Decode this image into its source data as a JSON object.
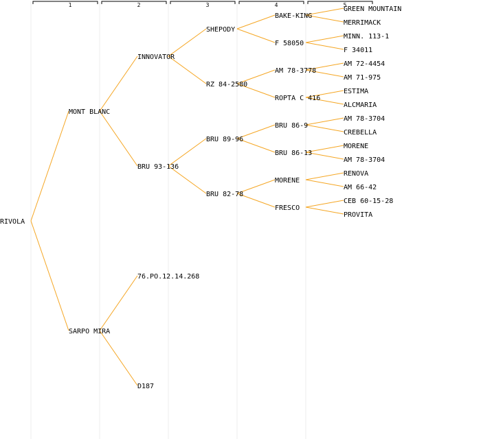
{
  "colors": {
    "edge": "#f5a623",
    "text": "#000000",
    "divider": "#ececec",
    "background": "#ffffff"
  },
  "generations": [
    "1",
    "2",
    "3",
    "4",
    "5"
  ],
  "tree": {
    "name": "RIVOLA",
    "children": [
      {
        "name": "MONT BLANC",
        "children": [
          {
            "name": "INNOVATOR",
            "children": [
              {
                "name": "SHEPODY",
                "children": [
                  {
                    "name": "BAKE-KING",
                    "children": [
                      {
                        "name": "GREEN MOUNTAIN"
                      },
                      {
                        "name": "MERRIMACK"
                      }
                    ]
                  },
                  {
                    "name": "F 58050",
                    "children": [
                      {
                        "name": "MINN. 113-1"
                      },
                      {
                        "name": "F 34011"
                      }
                    ]
                  }
                ]
              },
              {
                "name": "RZ 84-2580",
                "children": [
                  {
                    "name": "AM 78-3778",
                    "children": [
                      {
                        "name": "AM 72-4454"
                      },
                      {
                        "name": "AM 71-975"
                      }
                    ]
                  },
                  {
                    "name": "ROPTA C 416",
                    "children": [
                      {
                        "name": "ESTIMA"
                      },
                      {
                        "name": "ALCMARIA"
                      }
                    ]
                  }
                ]
              }
            ]
          },
          {
            "name": "BRU 93-136",
            "children": [
              {
                "name": "BRU 89-96",
                "children": [
                  {
                    "name": "BRU 86-9",
                    "children": [
                      {
                        "name": "AM 78-3704"
                      },
                      {
                        "name": "CREBELLA"
                      }
                    ]
                  },
                  {
                    "name": "BRU 86-13",
                    "children": [
                      {
                        "name": "MORENE"
                      },
                      {
                        "name": "AM 78-3704"
                      }
                    ]
                  }
                ]
              },
              {
                "name": "BRU 82-78",
                "children": [
                  {
                    "name": "MORENE",
                    "children": [
                      {
                        "name": "RENOVA"
                      },
                      {
                        "name": "AM 66-42"
                      }
                    ]
                  },
                  {
                    "name": "FRESCO",
                    "children": [
                      {
                        "name": "CEB 60-15-28"
                      },
                      {
                        "name": "PROVITA"
                      }
                    ]
                  }
                ]
              }
            ]
          }
        ]
      },
      {
        "name": "SARPO MIRA",
        "children": [
          {
            "name": "76.PO.12.14.268"
          },
          {
            "name": "D187"
          }
        ]
      }
    ]
  }
}
